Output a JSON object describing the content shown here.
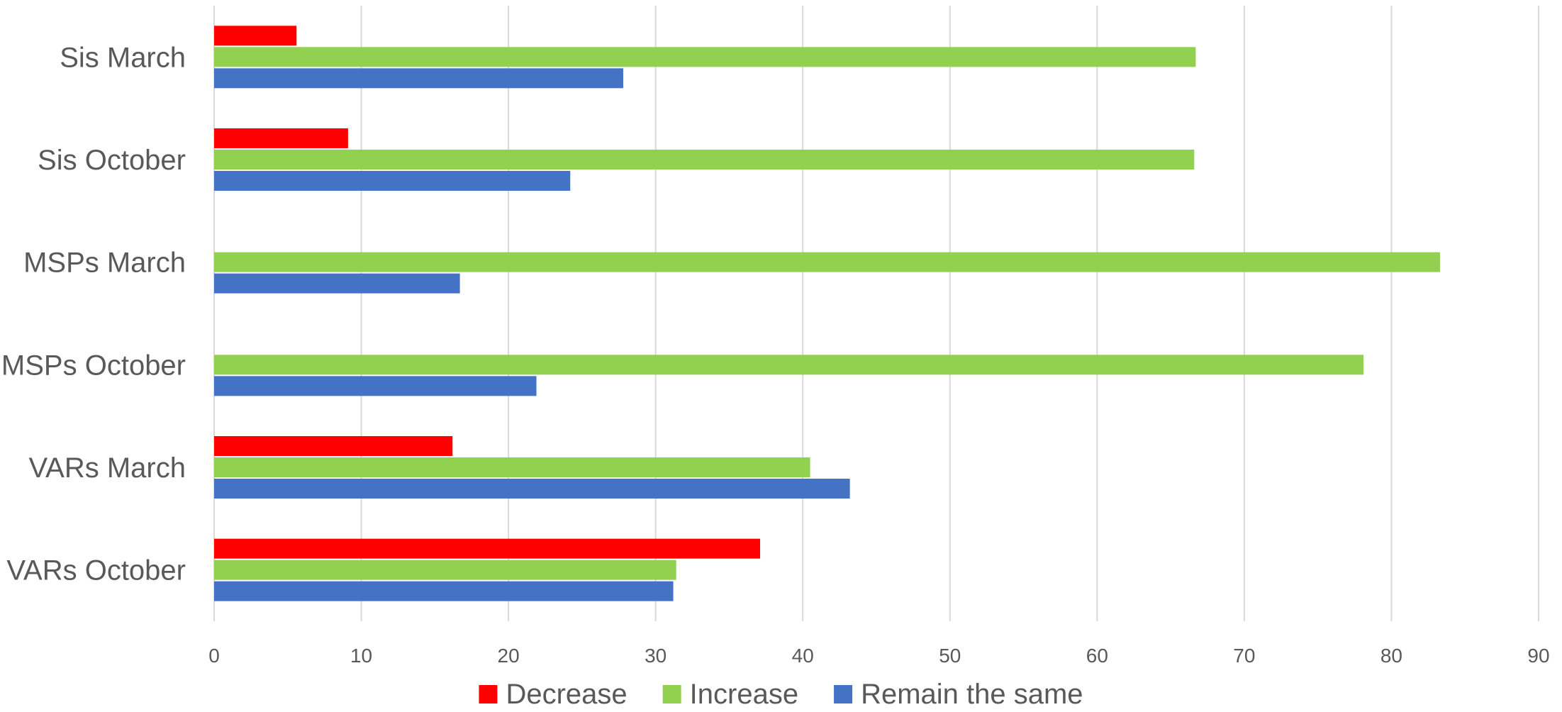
{
  "chart_data": {
    "type": "bar",
    "orientation": "horizontal",
    "title": "",
    "xlabel": "",
    "ylabel": "",
    "categories": [
      "Sis March",
      "Sis October",
      "MSPs March",
      "MSPs October",
      "VARs March",
      "VARs October"
    ],
    "series": [
      {
        "name": "Decrease",
        "color": "#ff0000",
        "values": [
          5.6,
          9.1,
          0,
          0,
          16.2,
          37.1
        ]
      },
      {
        "name": "Increase",
        "color": "#92d050",
        "values": [
          66.7,
          66.6,
          83.3,
          78.1,
          40.5,
          31.4
        ]
      },
      {
        "name": "Remain the same",
        "color": "#4472c4",
        "values": [
          27.8,
          24.2,
          16.7,
          21.9,
          43.2,
          31.2
        ]
      }
    ],
    "xlim": [
      0,
      90
    ],
    "xticks": [
      0,
      10,
      20,
      30,
      40,
      50,
      60,
      70,
      80,
      90
    ],
    "grid": "vertical",
    "legend_position": "bottom"
  }
}
